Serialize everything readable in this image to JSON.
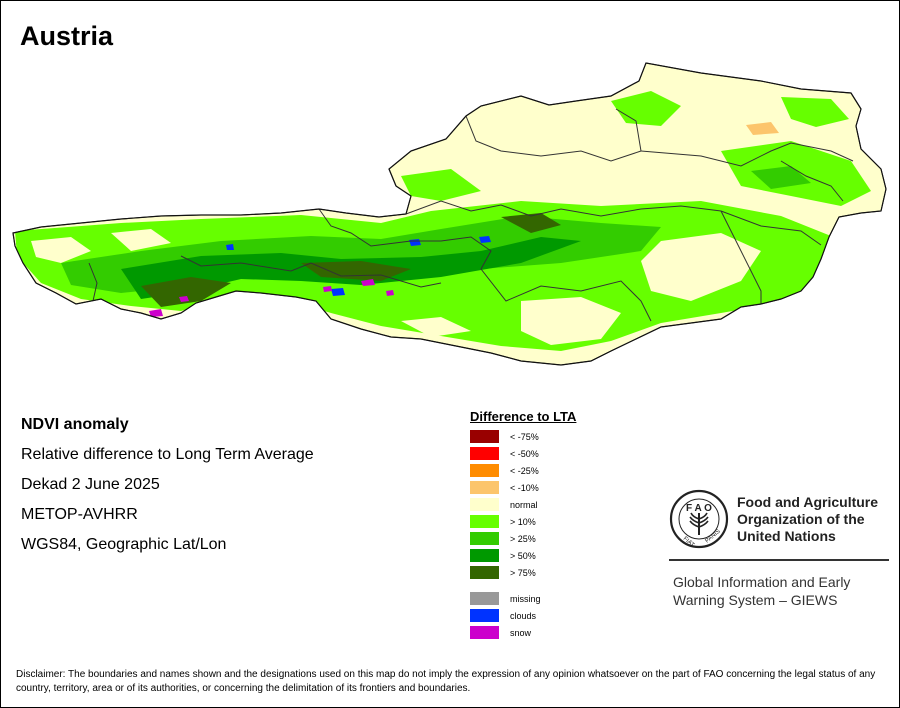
{
  "title": "Austria",
  "info": {
    "line1": "NDVI anomaly",
    "line2": "Relative difference to Long Term Average",
    "line3": "Dekad 2 June 2025",
    "line4": "METOP-AVHRR",
    "line5": "WGS84, Geographic Lat/Lon"
  },
  "legend": {
    "title": "Difference to LTA",
    "classes": [
      {
        "label": "< -75%",
        "color": "#990000"
      },
      {
        "label": "< -50%",
        "color": "#ff0000"
      },
      {
        "label": "< -25%",
        "color": "#ff8c00"
      },
      {
        "label": "< -10%",
        "color": "#fcc56c"
      },
      {
        "label": "normal",
        "color": "#ffffcc"
      },
      {
        "label": "> 10%",
        "color": "#66ff00"
      },
      {
        "label": "> 25%",
        "color": "#33cc00"
      },
      {
        "label": "> 50%",
        "color": "#009900"
      },
      {
        "label": "> 75%",
        "color": "#336600"
      }
    ],
    "extra": [
      {
        "label": "missing",
        "color": "#999999"
      },
      {
        "label": "clouds",
        "color": "#0033ff"
      },
      {
        "label": "snow",
        "color": "#cc00cc"
      }
    ]
  },
  "logo": {
    "name_line1": "Food and Agriculture",
    "name_line2": "Organization of the",
    "name_line3": "United Nations",
    "giews_line1": "Global Information and Early",
    "giews_line2": "Warning System – GIEWS",
    "emblem_letters": "FAO FIAT PANIS"
  },
  "disclaimer": "Disclaimer: The boundaries and names shown and the designations used on this map do not imply the expression of any opinion whatsoever on the part of FAO concerning the legal status of any country, territory, area or of its authorities, or concerning the delimitation of its frontiers and boundaries.",
  "colors": {
    "normal": "#ffffcc",
    "gt10": "#66ff00",
    "gt25": "#33cc00",
    "gt50": "#009900",
    "gt75": "#336600",
    "lt10": "#fcc56c",
    "clouds": "#0033ff",
    "snow": "#cc00cc",
    "border": "#333333"
  }
}
